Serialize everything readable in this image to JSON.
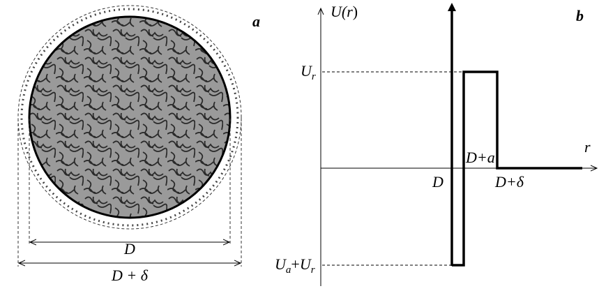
{
  "panel_a": {
    "label": "a",
    "inner_diameter": "D",
    "outer_diameter": "D + δ"
  },
  "panel_b": {
    "label": "b",
    "y_axis": {
      "main": "U(",
      "var": "r",
      "close": ")"
    },
    "x_axis": "r",
    "level_top": {
      "main": "U",
      "sub": "r"
    },
    "level_bottom": {
      "main1": "U",
      "sub1": "a",
      "plus": "+",
      "main2": "U",
      "sub2": "r"
    },
    "mark_d": "D",
    "mark_da": "D+a",
    "mark_dd": "D+δ"
  }
}
